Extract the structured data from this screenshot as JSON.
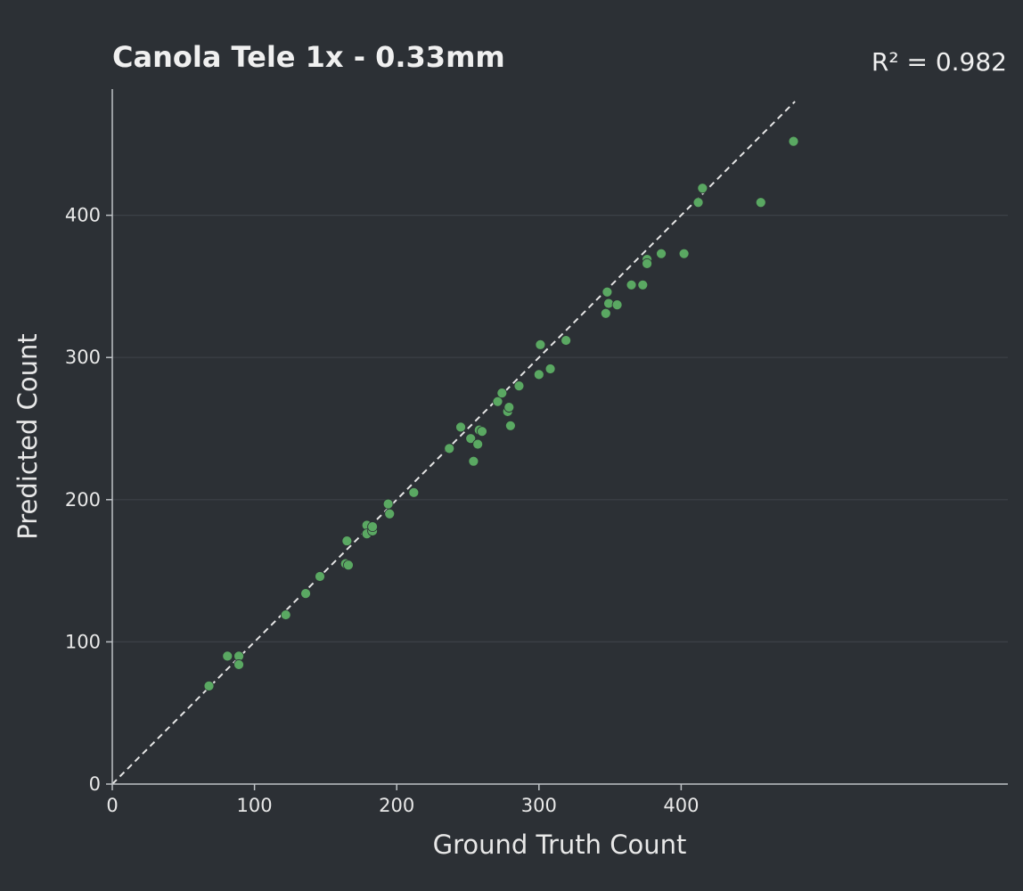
{
  "chart_data": {
    "type": "scatter",
    "title": "Canola Tele 1x - 0.33mm",
    "stat_label": "R² = 0.982",
    "xlabel": "Ground Truth Count",
    "ylabel": "Predicted Count",
    "xlim": [
      0,
      490
    ],
    "ylim": [
      0,
      490
    ],
    "xticks": [
      0,
      100,
      200,
      300,
      400
    ],
    "yticks": [
      0,
      100,
      200,
      300,
      400
    ],
    "grid": "horizontal",
    "reference_line": "y = x (dashed)",
    "point_color": "#5aa862",
    "points": [
      [
        68,
        69
      ],
      [
        81,
        90
      ],
      [
        89,
        90
      ],
      [
        89,
        84
      ],
      [
        122,
        119
      ],
      [
        136,
        134
      ],
      [
        146,
        146
      ],
      [
        164,
        155
      ],
      [
        165,
        171
      ],
      [
        166,
        154
      ],
      [
        179,
        182
      ],
      [
        179,
        176
      ],
      [
        183,
        178
      ],
      [
        183,
        181
      ],
      [
        194,
        197
      ],
      [
        195,
        190
      ],
      [
        212,
        205
      ],
      [
        237,
        236
      ],
      [
        245,
        251
      ],
      [
        252,
        243
      ],
      [
        254,
        227
      ],
      [
        257,
        239
      ],
      [
        258,
        249
      ],
      [
        260,
        248
      ],
      [
        271,
        269
      ],
      [
        274,
        275
      ],
      [
        278,
        262
      ],
      [
        279,
        265
      ],
      [
        280,
        252
      ],
      [
        286,
        280
      ],
      [
        300,
        288
      ],
      [
        301,
        309
      ],
      [
        308,
        292
      ],
      [
        319,
        312
      ],
      [
        347,
        331
      ],
      [
        348,
        346
      ],
      [
        349,
        338
      ],
      [
        355,
        337
      ],
      [
        365,
        351
      ],
      [
        373,
        351
      ],
      [
        376,
        369
      ],
      [
        376,
        366
      ],
      [
        386,
        373
      ],
      [
        402,
        373
      ],
      [
        412,
        409
      ],
      [
        415,
        419
      ],
      [
        456,
        409
      ],
      [
        479,
        452
      ]
    ]
  }
}
